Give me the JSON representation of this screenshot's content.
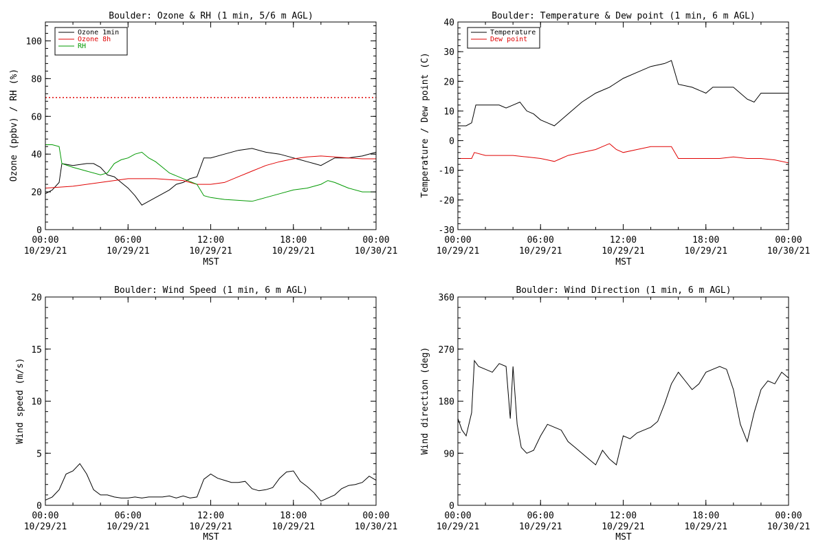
{
  "chart_data": [
    {
      "type": "line",
      "title": "Boulder: Ozone & RH (1 min, 5/6 m AGL)",
      "xlabel": "MST",
      "ylabel": "Ozone (ppbv) / RH (%)",
      "ylim": [
        0,
        110
      ],
      "yticks": [
        0,
        20,
        40,
        60,
        80,
        100
      ],
      "xlim": [
        0,
        24
      ],
      "xtick_labels": [
        [
          "00:00",
          "10/29/21"
        ],
        [
          "06:00",
          "10/29/21"
        ],
        [
          "12:00",
          "10/29/21"
        ],
        [
          "18:00",
          "10/29/21"
        ],
        [
          "00:00",
          "10/30/21"
        ]
      ],
      "legend": "top-left",
      "grid": false,
      "reference_line": {
        "y": 70,
        "color": "#e00000",
        "style": "dotted"
      },
      "series": [
        {
          "name": "Ozone 1min",
          "color": "#000000",
          "x": [
            0,
            0.5,
            1,
            1.2,
            2,
            3,
            3.5,
            4,
            4.5,
            5,
            5.5,
            6,
            6.5,
            7,
            7.5,
            8,
            8.5,
            9,
            9.5,
            10,
            10.5,
            11,
            11.5,
            12,
            13,
            14,
            15,
            16,
            17,
            18,
            18.5,
            19,
            19.5,
            20,
            20.5,
            21,
            22,
            23,
            24
          ],
          "y": [
            19,
            21,
            25,
            35,
            34,
            35,
            35,
            33,
            29,
            28,
            25,
            22,
            18,
            13,
            15,
            17,
            19,
            21,
            24,
            25,
            27,
            28,
            38,
            38,
            40,
            42,
            43,
            41,
            40,
            38,
            37,
            36,
            35,
            34,
            36,
            38,
            38,
            39,
            41
          ]
        },
        {
          "name": "Ozone 8h",
          "color": "#e00000",
          "x": [
            0,
            2,
            4,
            6,
            8,
            10,
            11,
            12,
            13,
            14,
            15,
            16,
            17,
            18,
            19,
            20,
            21,
            22,
            23,
            24
          ],
          "y": [
            22,
            23,
            25,
            27,
            27,
            26,
            24,
            24,
            25,
            28,
            31,
            34,
            36,
            37.5,
            38.5,
            39,
            38.5,
            38,
            37.5,
            37.5
          ]
        },
        {
          "name": "RH",
          "color": "#009900",
          "x": [
            0,
            0.5,
            1,
            1.2,
            2,
            3,
            4,
            4.5,
            5,
            5.5,
            6,
            6.5,
            7,
            7.5,
            8,
            8.5,
            9,
            10,
            11,
            11.5,
            12,
            13,
            14,
            15,
            16,
            17,
            18,
            19,
            20,
            20.5,
            21,
            22,
            23,
            24
          ],
          "y": [
            45,
            45,
            44,
            35,
            33,
            31,
            29,
            30,
            35,
            37,
            38,
            40,
            41,
            38,
            36,
            33,
            30,
            27,
            24,
            18,
            17,
            16,
            15.5,
            15,
            17,
            19,
            21,
            22,
            24,
            26,
            25,
            22,
            20,
            20
          ]
        }
      ]
    },
    {
      "type": "line",
      "title": "Boulder: Temperature & Dew point (1 min, 6 m AGL)",
      "xlabel": "MST",
      "ylabel": "Temperature / Dew point (C)",
      "ylim": [
        -30,
        40
      ],
      "yticks": [
        -30,
        -20,
        -10,
        0,
        10,
        20,
        30,
        40
      ],
      "xlim": [
        0,
        24
      ],
      "xtick_labels": [
        [
          "00:00",
          "10/29/21"
        ],
        [
          "06:00",
          "10/29/21"
        ],
        [
          "12:00",
          "10/29/21"
        ],
        [
          "18:00",
          "10/29/21"
        ],
        [
          "00:00",
          "10/30/21"
        ]
      ],
      "legend": "top-left",
      "grid": false,
      "series": [
        {
          "name": "Temperature",
          "color": "#000000",
          "x": [
            0,
            0.6,
            1,
            1.3,
            2,
            3,
            3.5,
            4,
            4.5,
            5,
            5.5,
            6,
            6.5,
            7,
            7.5,
            8,
            9,
            10,
            11,
            12,
            13,
            14,
            15,
            15.5,
            16,
            17,
            18,
            18.5,
            19,
            20,
            21,
            21.5,
            22,
            23,
            24
          ],
          "y": [
            5,
            5,
            6,
            12,
            12,
            12,
            11,
            12,
            13,
            10,
            9,
            7,
            6,
            5,
            7,
            9,
            13,
            16,
            18,
            21,
            23,
            25,
            26,
            27,
            19,
            18,
            16,
            18,
            18,
            18,
            14,
            13,
            16,
            16,
            16
          ]
        },
        {
          "name": "Dew point",
          "color": "#e00000",
          "x": [
            0,
            1,
            1.2,
            2,
            3,
            4,
            5,
            6,
            6.5,
            7,
            7.5,
            8,
            9,
            10,
            10.5,
            11,
            11.5,
            12,
            13,
            14,
            15,
            15.5,
            16,
            17,
            18,
            19,
            20,
            21,
            22,
            23,
            24
          ],
          "y": [
            -6,
            -6,
            -4,
            -5,
            -5,
            -5,
            -5.5,
            -6,
            -6.5,
            -7,
            -6,
            -5,
            -4,
            -3,
            -2,
            -1,
            -3,
            -4,
            -3,
            -2,
            -2,
            -2,
            -6,
            -6,
            -6,
            -6,
            -5.5,
            -6,
            -6,
            -6.5,
            -7.5
          ]
        }
      ]
    },
    {
      "type": "line",
      "title": "Boulder: Wind Speed (1 min, 6 m AGL)",
      "xlabel": "MST",
      "ylabel": "Wind speed (m/s)",
      "ylim": [
        0,
        20
      ],
      "yticks": [
        0,
        5,
        10,
        15,
        20
      ],
      "xlim": [
        0,
        24
      ],
      "xtick_labels": [
        [
          "00:00",
          "10/29/21"
        ],
        [
          "06:00",
          "10/29/21"
        ],
        [
          "12:00",
          "10/29/21"
        ],
        [
          "18:00",
          "10/29/21"
        ],
        [
          "00:00",
          "10/30/21"
        ]
      ],
      "grid": false,
      "series": [
        {
          "color": "#000000",
          "x": [
            0,
            0.5,
            1,
            1.5,
            2,
            2.5,
            3,
            3.5,
            4,
            4.5,
            5,
            5.5,
            6,
            6.5,
            7,
            7.5,
            8,
            8.5,
            9,
            9.5,
            10,
            10.5,
            11,
            11.5,
            12,
            12.5,
            13,
            13.5,
            14,
            14.5,
            15,
            15.5,
            16,
            16.5,
            17,
            17.5,
            18,
            18.5,
            19,
            19.5,
            20,
            20.5,
            21,
            21.5,
            22,
            22.5,
            23,
            23.5,
            24
          ],
          "y": [
            0.5,
            0.8,
            1.5,
            3,
            3.3,
            4,
            3,
            1.5,
            1,
            1,
            0.8,
            0.7,
            0.7,
            0.8,
            0.7,
            0.8,
            0.8,
            0.8,
            0.9,
            0.7,
            0.9,
            0.7,
            0.8,
            2.5,
            3,
            2.6,
            2.4,
            2.2,
            2.2,
            2.3,
            1.6,
            1.4,
            1.5,
            1.7,
            2.6,
            3.2,
            3.3,
            2.3,
            1.8,
            1.2,
            0.4,
            0.7,
            1,
            1.6,
            1.9,
            2,
            2.2,
            2.8,
            2.4
          ]
        }
      ]
    },
    {
      "type": "line",
      "title": "Boulder: Wind Direction (1 min, 6 m AGL)",
      "xlabel": "MST",
      "ylabel": "Wind direction (deg)",
      "ylim": [
        0,
        360
      ],
      "yticks": [
        0,
        90,
        180,
        270,
        360
      ],
      "xlim": [
        0,
        24
      ],
      "xtick_labels": [
        [
          "00:00",
          "10/29/21"
        ],
        [
          "06:00",
          "10/29/21"
        ],
        [
          "12:00",
          "10/29/21"
        ],
        [
          "18:00",
          "10/29/21"
        ],
        [
          "00:00",
          "10/30/21"
        ]
      ],
      "grid": false,
      "series": [
        {
          "color": "#000000",
          "x": [
            0,
            0.3,
            0.6,
            1,
            1.2,
            1.5,
            2,
            2.5,
            3,
            3.5,
            3.8,
            4,
            4.3,
            4.6,
            5,
            5.5,
            6,
            6.5,
            7,
            7.5,
            8,
            8.5,
            9,
            9.5,
            10,
            10.5,
            11,
            11.5,
            12,
            12.5,
            13,
            13.5,
            14,
            14.5,
            15,
            15.5,
            16,
            16.5,
            17,
            17.5,
            18,
            18.5,
            19,
            19.5,
            20,
            20.5,
            21,
            21.5,
            22,
            22.5,
            23,
            23.5,
            24
          ],
          "y": [
            150,
            130,
            120,
            160,
            250,
            240,
            235,
            230,
            245,
            240,
            150,
            240,
            140,
            100,
            90,
            95,
            120,
            140,
            135,
            130,
            110,
            100,
            90,
            80,
            70,
            95,
            80,
            70,
            120,
            115,
            125,
            130,
            135,
            145,
            175,
            210,
            230,
            215,
            200,
            210,
            230,
            235,
            240,
            235,
            200,
            140,
            110,
            160,
            200,
            215,
            210,
            230,
            220
          ]
        }
      ]
    }
  ]
}
